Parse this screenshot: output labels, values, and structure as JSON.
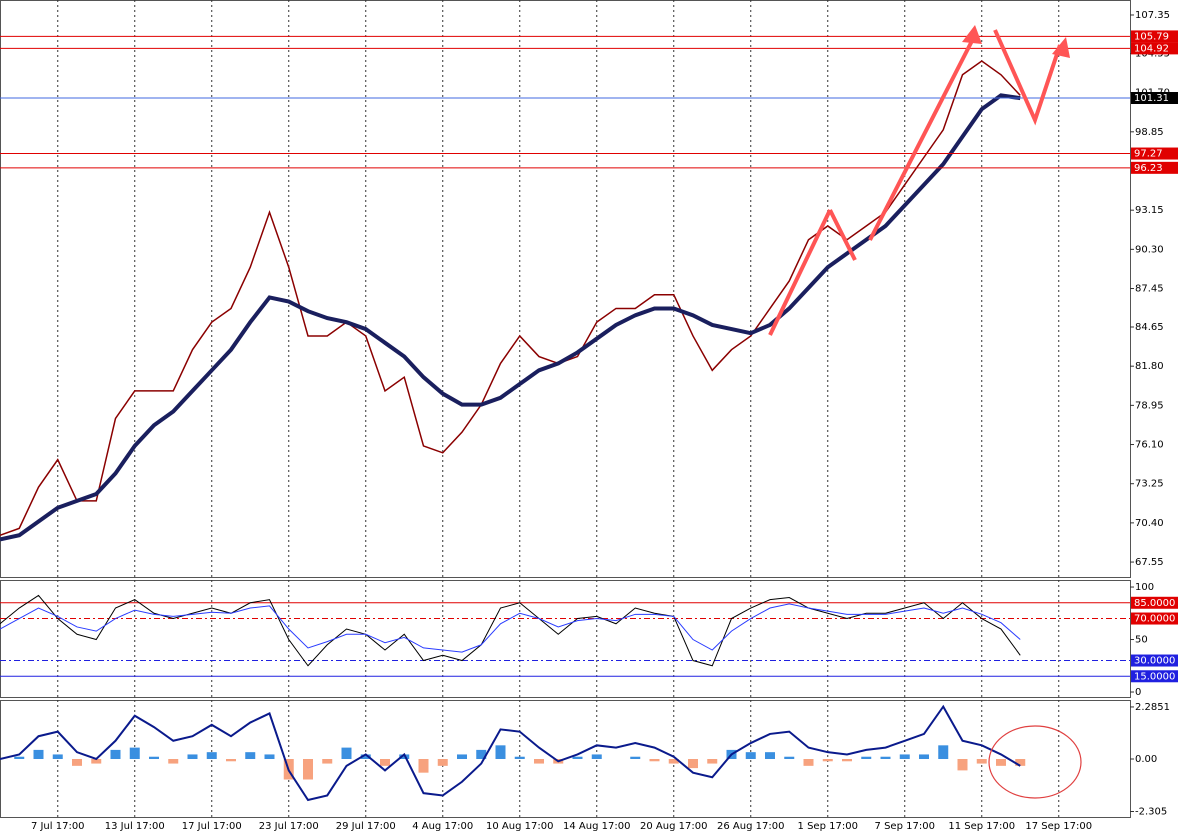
{
  "chart_data": [
    {
      "type": "price",
      "categories": [
        null,
        null,
        null,
        "7 Jul 17:00",
        null,
        null,
        null,
        "13 Jul 17:00",
        null,
        null,
        null,
        "17 Jul 17:00",
        null,
        null,
        null,
        "23 Jul 17:00",
        null,
        null,
        null,
        "29 Jul 17:00",
        null,
        null,
        null,
        "4 Aug 17:00",
        null,
        null,
        null,
        "10 Aug 17:00",
        null,
        null,
        null,
        "14 Aug 17:00",
        null,
        null,
        null,
        "20 Aug 17:00",
        null,
        null,
        null,
        "26 Aug 17:00",
        null,
        null,
        null,
        "1 Sep 17:00",
        null,
        null,
        null,
        "7 Sep 17:00",
        null,
        null,
        null,
        "11 Sep 17:00",
        null,
        null,
        null,
        "17 Sep 17:00",
        null
      ],
      "series": [
        {
          "color": "#8b0000",
          "values": [
            69.5,
            70,
            73,
            75,
            72,
            72,
            78,
            80,
            80,
            80,
            83,
            85,
            86,
            89,
            93,
            89,
            84,
            84,
            85,
            84,
            80,
            81,
            76,
            75.5,
            77,
            79,
            82,
            84,
            82.5,
            82,
            82.5,
            85,
            86,
            86,
            87,
            87,
            84,
            81.5,
            83,
            84,
            86,
            88,
            91,
            92,
            91,
            92,
            93,
            95,
            97,
            99,
            103,
            104,
            103,
            101.5,
            null,
            null,
            null
          ]
        },
        {
          "color": "#1a1f5e",
          "values": [
            69.2,
            69.5,
            70.5,
            71.5,
            72,
            72.5,
            74,
            76,
            77.5,
            78.5,
            80,
            81.5,
            83,
            85,
            86.8,
            86.5,
            85.8,
            85.3,
            85,
            84.5,
            83.5,
            82.5,
            81,
            79.8,
            79,
            79,
            79.5,
            80.5,
            81.5,
            82,
            82.8,
            83.8,
            84.8,
            85.5,
            86,
            86,
            85.5,
            84.8,
            84.5,
            84.2,
            84.8,
            86,
            87.5,
            89,
            90,
            91,
            92,
            93.5,
            95,
            96.5,
            98.5,
            100.5,
            101.5,
            101.3,
            null,
            null,
            null
          ]
        }
      ],
      "ylim": [
        66.39,
        108.44
      ],
      "yticks": [
        107.35,
        104.55,
        {
          "value": 101.7,
          "label": "101.70"
        },
        98.85,
        93.15,
        {
          "value": 90.3,
          "label": "90.30"
        },
        87.45,
        84.65,
        {
          "value": 81.8,
          "label": "81.80"
        },
        78.95,
        {
          "value": 76.1,
          "label": "76.10"
        },
        73.25,
        {
          "value": 70.4,
          "label": "70.40"
        },
        67.55
      ],
      "levels": [
        {
          "value": 105.79,
          "color": "#e00000"
        },
        {
          "value": 104.92,
          "color": "#e00000"
        },
        {
          "value": 101.31,
          "color": "#4169e1"
        },
        {
          "value": 97.27,
          "color": "#e00000"
        },
        {
          "value": 96.23,
          "color": "#e00000"
        }
      ]
    },
    {
      "type": "oscillator",
      "series": [
        {
          "color": "#000000",
          "values": [
            65,
            80,
            92,
            70,
            55,
            50,
            80,
            88,
            75,
            70,
            75,
            80,
            75,
            85,
            88,
            50,
            25,
            45,
            60,
            55,
            40,
            55,
            30,
            35,
            30,
            45,
            80,
            85,
            70,
            55,
            70,
            72,
            65,
            80,
            75,
            72,
            30,
            25,
            70,
            80,
            88,
            90,
            80,
            75,
            70,
            75,
            75,
            80,
            85,
            70,
            85,
            70,
            60,
            35,
            null,
            null,
            null
          ]
        },
        {
          "color": "#2a3cff",
          "values": [
            60,
            70,
            80,
            72,
            62,
            58,
            70,
            78,
            74,
            72,
            74,
            76,
            75,
            80,
            82,
            60,
            42,
            48,
            55,
            55,
            47,
            52,
            42,
            40,
            38,
            45,
            65,
            75,
            70,
            62,
            68,
            70,
            68,
            74,
            74,
            72,
            50,
            40,
            58,
            70,
            80,
            84,
            80,
            77,
            74,
            74,
            74,
            77,
            80,
            75,
            80,
            74,
            66,
            50,
            null,
            null,
            null
          ]
        }
      ],
      "ylim": [
        -5.7,
        106.7
      ],
      "yticks": [
        100,
        50,
        0
      ],
      "levels": [
        {
          "value": 85,
          "label": "85.0000",
          "color": "#e00000",
          "dash": false
        },
        {
          "value": 70,
          "label": "70.0000",
          "color": "#e00000",
          "dash": true
        },
        {
          "value": 30,
          "label": "30.0000",
          "color": "#2020e0",
          "dash": true
        },
        {
          "value": 15,
          "label": "15.0000",
          "color": "#2020e0",
          "dash": false
        }
      ]
    },
    {
      "type": "macd",
      "line": {
        "color": "#0a1a8c",
        "values": [
          0,
          0.2,
          1.0,
          1.2,
          0.3,
          0,
          0.8,
          1.9,
          1.4,
          0.8,
          1.0,
          1.5,
          1.0,
          1.6,
          2.0,
          -0.5,
          -1.8,
          -1.6,
          -0.3,
          0.2,
          -0.5,
          0.2,
          -1.5,
          -1.6,
          -1.0,
          -0.2,
          1.3,
          1.2,
          0.5,
          -0.1,
          0.2,
          0.6,
          0.5,
          0.7,
          0.5,
          0.1,
          -0.6,
          -0.8,
          0.2,
          0.7,
          1.1,
          1.2,
          0.5,
          0.3,
          0.2,
          0.4,
          0.5,
          0.8,
          1.1,
          2.3,
          0.8,
          0.6,
          0.2,
          -0.3,
          null,
          null,
          null
        ]
      },
      "histogram": {
        "color": "#3a8fe0",
        "negative_color": "#f7a27e",
        "values": [
          0,
          0.1,
          0.4,
          0.2,
          -0.3,
          -0.2,
          0.4,
          0.5,
          0.1,
          -0.2,
          0.2,
          0.3,
          -0.1,
          0.3,
          0.2,
          -0.9,
          -0.9,
          -0.2,
          0.5,
          0.2,
          -0.3,
          0.2,
          -0.6,
          -0.3,
          0.2,
          0.4,
          0.6,
          0.1,
          -0.2,
          -0.2,
          0.1,
          0.2,
          0,
          0.1,
          -0.1,
          -0.2,
          -0.4,
          -0.2,
          0.4,
          0.3,
          0.3,
          0.1,
          -0.3,
          -0.1,
          -0.1,
          0.1,
          0.1,
          0.2,
          0.2,
          0.6,
          -0.5,
          -0.2,
          -0.3,
          -0.3,
          null,
          null,
          null
        ]
      },
      "ylim": [
        -2.59,
        2.59
      ],
      "yticks": [
        2.2851,
        {
          "value": 0,
          "label": "0.00"
        },
        -2.305
      ]
    }
  ]
}
